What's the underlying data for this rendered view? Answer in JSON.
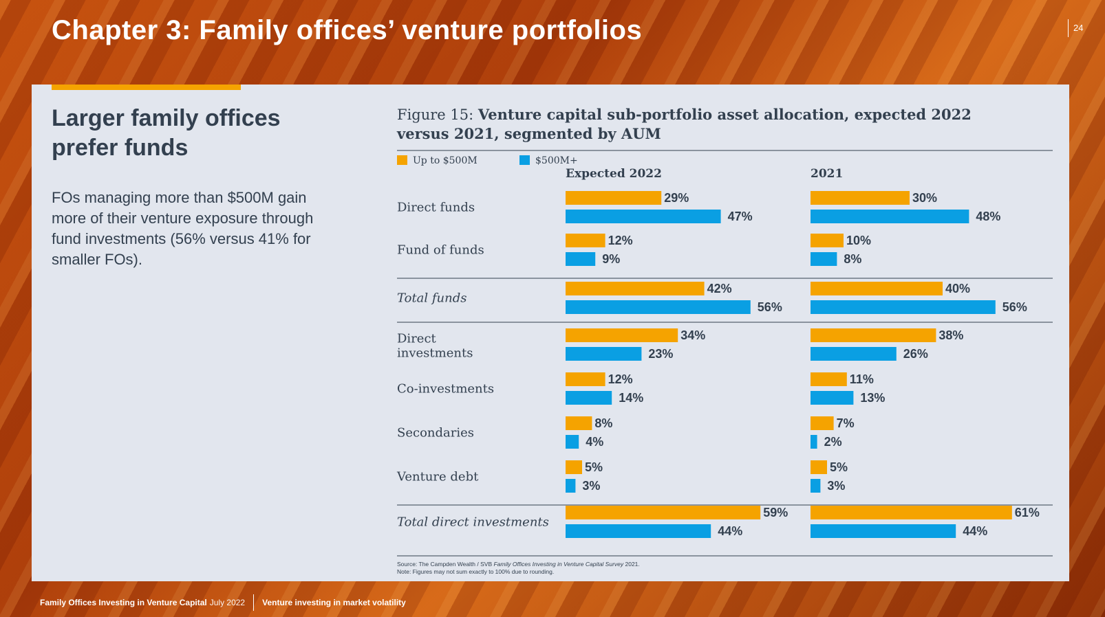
{
  "header": {
    "chapter_title": "Chapter 3: Family offices’ venture portfolios",
    "page_number": "24"
  },
  "panel": {
    "heading": "Larger family offices prefer funds",
    "body": "FOs managing more than $500M gain more of their venture exposure through fund investments (56% versus 41% for smaller FOs)."
  },
  "figure": {
    "label": "Figure 15:",
    "title": "Venture capital sub-portfolio asset allocation, expected 2022 versus 2021, segmented by AUM",
    "source_prefix": "Source: The Campden Wealth / SVB ",
    "source_italic": "Family Offices Investing in Venture Capital Survey",
    "source_suffix": " 2021.",
    "note": "Note: Figures may not sum exactly to 100% due to rounding."
  },
  "chart_data": {
    "type": "bar",
    "orientation": "horizontal",
    "panels": [
      "Expected 2022",
      "2021"
    ],
    "categories": [
      "Direct funds",
      "Fund of funds",
      "Total funds",
      "Direct investments",
      "Co-investments",
      "Secondaries",
      "Venture debt",
      "Total direct investments"
    ],
    "italic_categories": [
      "Total funds",
      "Total direct investments"
    ],
    "series": [
      {
        "name": "Up to $500M",
        "color": "#f5a300",
        "values": {
          "Expected 2022": [
            29,
            12,
            42,
            34,
            12,
            8,
            5,
            59
          ],
          "2021": [
            30,
            10,
            40,
            38,
            11,
            7,
            5,
            61
          ]
        }
      },
      {
        "name": "$500M+",
        "color": "#0a9fe3",
        "values": {
          "Expected 2022": [
            47,
            9,
            56,
            23,
            14,
            4,
            3,
            44
          ],
          "2021": [
            48,
            8,
            56,
            26,
            13,
            2,
            3,
            44
          ]
        }
      }
    ],
    "value_suffix": "%",
    "legend_position": "top-left",
    "grid": false
  },
  "footer": {
    "publication": "Family Offices Investing in Venture Capital",
    "date": "July 2022",
    "section": "Venture investing in market volatility"
  },
  "colors": {
    "accent": "#f5a300",
    "text": "#33404f",
    "panel_bg": "#e2e6ee"
  }
}
